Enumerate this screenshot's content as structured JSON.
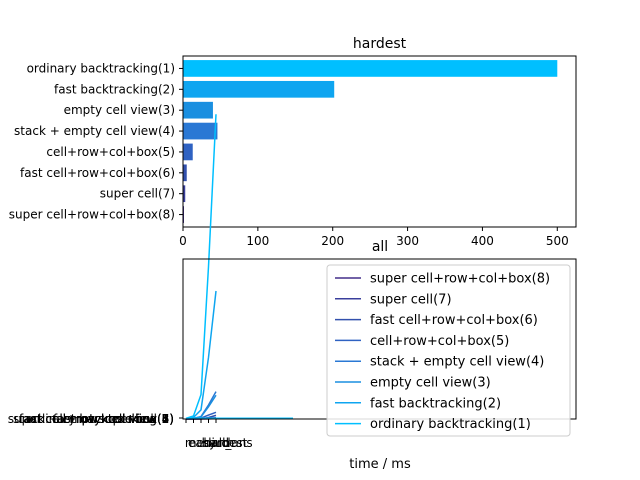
{
  "chart_data": [
    {
      "type": "bar",
      "orientation": "horizontal",
      "title": "hardest",
      "xlabel": "",
      "ylabel": "",
      "categories": [
        "ordinary backtracking(1)",
        "fast backtracking(2)",
        "empty cell view(3)",
        "stack + empty cell view(4)",
        "cell+row+col+box(5)",
        "fast cell+row+col+box(6)",
        "super cell(7)",
        "super cell+row+col+box(8)"
      ],
      "values": [
        500,
        202,
        40,
        46,
        13,
        5,
        3,
        0.5
      ],
      "colors": [
        "#00bfff",
        "#0ea5f0",
        "#1a8fe0",
        "#2a78d4",
        "#2f62c2",
        "#3250ad",
        "#3a3f9c",
        "#432f8a"
      ],
      "xlim": [
        0,
        525
      ],
      "xticks": [
        "0",
        "100",
        "200",
        "300",
        "400",
        "500"
      ],
      "grid": false
    },
    {
      "type": "line",
      "title": "all",
      "xlabel": "time / ms",
      "ylabel": "",
      "x": [
        "easy",
        "medium",
        "hard",
        "hardest",
        "all_ans"
      ],
      "series": [
        {
          "name": "super cell+row+col+box(8)",
          "color": "#432f8a",
          "values": [
            0.1,
            0.1,
            0.2,
            0.5,
            1.2
          ]
        },
        {
          "name": "super cell(7)",
          "color": "#3a3f9c",
          "values": [
            0.1,
            0.2,
            0.4,
            3,
            4
          ]
        },
        {
          "name": "fast cell+row+col+box(6)",
          "color": "#3250ad",
          "values": [
            0.2,
            0.4,
            1,
            5,
            12
          ]
        },
        {
          "name": "cell+row+col+box(5)",
          "color": "#2f62c2",
          "values": [
            0.3,
            1,
            3,
            13,
            22
          ]
        },
        {
          "name": "stack + empty cell view(4)",
          "color": "#2a78d4",
          "values": [
            0.5,
            2,
            8,
            46,
            90
          ]
        },
        {
          "name": "empty cell view(3)",
          "color": "#1a8fe0",
          "values": [
            0.5,
            2,
            7,
            40,
            78
          ]
        },
        {
          "name": "fast backtracking(2)",
          "color": "#0ea5f0",
          "values": [
            1,
            5,
            30,
            202,
            420
          ]
        },
        {
          "name": "ordinary backtracking(1)",
          "color": "#00bfff",
          "values": [
            2,
            10,
            80,
            500,
            1000
          ]
        }
      ],
      "legend_placement": "right",
      "grid": false
    }
  ]
}
